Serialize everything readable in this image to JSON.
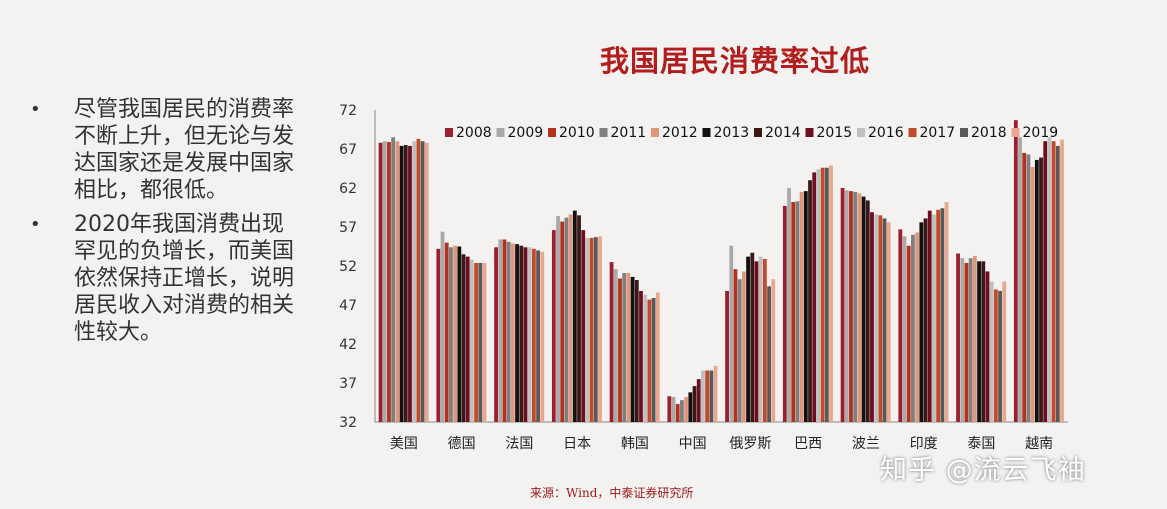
{
  "bullets": [
    "尽管我国居民的消费率不断上升，但无论与发达国家还是发展中国家相比，都很低。",
    "2020年我国消费出现罕见的负增长，而美国依然保持正增长，说明居民收入对消费的相关性较大。"
  ],
  "bullet_symbol": "•",
  "source": "来源：Wind，中泰证券研究所",
  "watermark": "知乎 @流云飞袖",
  "chart_data": {
    "type": "bar",
    "title": "我国居民消费率过低",
    "categories": [
      "美国",
      "德国",
      "法国",
      "日本",
      "韩国",
      "中国",
      "俄罗斯",
      "巴西",
      "波兰",
      "印度",
      "泰国",
      "越南"
    ],
    "ylim": [
      32,
      72
    ],
    "yticks": [
      32,
      37,
      42,
      47,
      52,
      57,
      62,
      67,
      72
    ],
    "legend_position": "top",
    "grid": false,
    "series": [
      {
        "name": "2008",
        "color": "#9b1f2e",
        "values": [
          67.8,
          54.2,
          54.4,
          56.6,
          52.5,
          35.3,
          48.8,
          59.7,
          62.0,
          56.7,
          53.6,
          70.7
        ]
      },
      {
        "name": "2009",
        "color": "#a9a9a9",
        "values": [
          68.0,
          56.4,
          55.4,
          58.4,
          51.6,
          35.2,
          54.6,
          62.0,
          61.7,
          55.8,
          53.0,
          68.5
        ]
      },
      {
        "name": "2010",
        "color": "#b2321e",
        "values": [
          67.9,
          55.0,
          55.4,
          57.7,
          50.4,
          34.3,
          51.6,
          60.2,
          61.6,
          54.6,
          52.4,
          66.5
        ]
      },
      {
        "name": "2011",
        "color": "#7f7f7f",
        "values": [
          68.5,
          54.4,
          55.1,
          58.2,
          51.1,
          34.8,
          50.3,
          60.3,
          61.5,
          56.0,
          53.0,
          66.3
        ]
      },
      {
        "name": "2012",
        "color": "#e0987c",
        "values": [
          68.0,
          54.6,
          54.9,
          58.6,
          51.1,
          35.2,
          51.3,
          61.5,
          61.3,
          56.3,
          53.3,
          64.7
        ]
      },
      {
        "name": "2013",
        "color": "#111111",
        "values": [
          67.4,
          54.5,
          54.8,
          59.1,
          50.6,
          35.8,
          53.2,
          61.6,
          60.9,
          57.6,
          52.6,
          65.6
        ]
      },
      {
        "name": "2014",
        "color": "#3a1818",
        "values": [
          67.5,
          53.5,
          54.6,
          58.5,
          50.2,
          36.6,
          53.7,
          63.0,
          60.4,
          58.1,
          52.6,
          65.9
        ]
      },
      {
        "name": "2015",
        "color": "#6d0f20",
        "values": [
          67.4,
          53.2,
          54.4,
          56.6,
          48.8,
          37.5,
          52.6,
          64.0,
          58.9,
          59.1,
          51.3,
          68.0
        ]
      },
      {
        "name": "2016",
        "color": "#bfbfbf",
        "values": [
          68.0,
          52.8,
          54.4,
          55.6,
          48.3,
          38.6,
          53.2,
          64.4,
          58.6,
          58.6,
          50.0,
          68.5
        ]
      },
      {
        "name": "2017",
        "color": "#c04a2a",
        "values": [
          68.3,
          52.4,
          54.2,
          55.6,
          47.7,
          38.6,
          52.9,
          64.6,
          58.5,
          59.2,
          49.0,
          68.0
        ]
      },
      {
        "name": "2018",
        "color": "#595959",
        "values": [
          68.0,
          52.4,
          54.0,
          55.7,
          47.9,
          38.6,
          49.4,
          64.6,
          58.1,
          59.4,
          48.8,
          67.4
        ]
      },
      {
        "name": "2019",
        "color": "#e8a890",
        "values": [
          67.8,
          52.4,
          53.8,
          55.8,
          48.6,
          39.2,
          50.3,
          64.9,
          57.6,
          60.2,
          50.0,
          68.2
        ]
      }
    ]
  }
}
